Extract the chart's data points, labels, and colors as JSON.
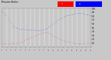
{
  "background_color": "#c8c8c8",
  "plot_bg_color": "#c8c8c8",
  "grid_color": "#ffffff",
  "blue_color": "#0000ff",
  "red_color": "#ff0000",
  "ylim": [
    0,
    100
  ],
  "yticks": [
    10,
    20,
    30,
    40,
    50,
    60,
    70,
    80,
    90,
    100
  ],
  "blue_pts": [
    [
      0,
      92
    ],
    [
      3,
      88
    ],
    [
      6,
      82
    ],
    [
      9,
      75
    ],
    [
      12,
      68
    ],
    [
      15,
      62
    ],
    [
      18,
      56
    ],
    [
      21,
      52
    ],
    [
      24,
      50
    ],
    [
      27,
      48
    ],
    [
      30,
      47
    ],
    [
      33,
      46
    ],
    [
      36,
      46
    ],
    [
      39,
      47
    ],
    [
      42,
      45
    ],
    [
      45,
      44
    ],
    [
      48,
      44
    ],
    [
      51,
      44
    ],
    [
      54,
      44
    ],
    [
      57,
      44
    ],
    [
      60,
      43
    ],
    [
      63,
      43
    ],
    [
      66,
      43
    ],
    [
      69,
      44
    ],
    [
      72,
      44
    ],
    [
      75,
      46
    ],
    [
      78,
      48
    ],
    [
      81,
      51
    ],
    [
      84,
      54
    ],
    [
      87,
      57
    ],
    [
      90,
      61
    ],
    [
      93,
      65
    ],
    [
      96,
      68
    ],
    [
      99,
      71
    ],
    [
      102,
      74
    ],
    [
      105,
      76
    ],
    [
      108,
      78
    ],
    [
      111,
      80
    ],
    [
      114,
      82
    ],
    [
      117,
      83
    ],
    [
      120,
      84
    ],
    [
      123,
      85
    ],
    [
      126,
      86
    ],
    [
      129,
      87
    ],
    [
      132,
      88
    ],
    [
      135,
      88
    ],
    [
      138,
      88
    ],
    [
      141,
      87
    ],
    [
      144,
      86
    ],
    [
      147,
      85
    ],
    [
      150,
      84
    ],
    [
      153,
      82
    ],
    [
      156,
      80
    ]
  ],
  "red_pts": [
    [
      0,
      8
    ],
    [
      3,
      8
    ],
    [
      6,
      8
    ],
    [
      9,
      8
    ],
    [
      12,
      8
    ],
    [
      15,
      8
    ],
    [
      18,
      8
    ],
    [
      21,
      8
    ],
    [
      24,
      9
    ],
    [
      27,
      10
    ],
    [
      30,
      11
    ],
    [
      33,
      12
    ],
    [
      36,
      13
    ],
    [
      39,
      18
    ],
    [
      42,
      20
    ],
    [
      45,
      22
    ],
    [
      48,
      23
    ],
    [
      51,
      25
    ],
    [
      54,
      26
    ],
    [
      57,
      28
    ],
    [
      60,
      30
    ],
    [
      63,
      32
    ],
    [
      66,
      34
    ],
    [
      69,
      36
    ],
    [
      72,
      37
    ],
    [
      75,
      38
    ],
    [
      78,
      37
    ],
    [
      81,
      35
    ],
    [
      84,
      33
    ],
    [
      87,
      31
    ],
    [
      90,
      29
    ],
    [
      93,
      27
    ],
    [
      96,
      25
    ],
    [
      99,
      22
    ],
    [
      102,
      20
    ],
    [
      105,
      18
    ],
    [
      108,
      16
    ],
    [
      111,
      15
    ],
    [
      114,
      14
    ],
    [
      117,
      13
    ],
    [
      120,
      12
    ],
    [
      123,
      11
    ],
    [
      126,
      10
    ],
    [
      129,
      9
    ],
    [
      132,
      9
    ],
    [
      135,
      8
    ],
    [
      138,
      8
    ],
    [
      141,
      8
    ],
    [
      144,
      8
    ],
    [
      147,
      8
    ],
    [
      150,
      12
    ],
    [
      153,
      8
    ]
  ],
  "n_xticks": 20,
  "xlim": [
    0,
    156
  ]
}
